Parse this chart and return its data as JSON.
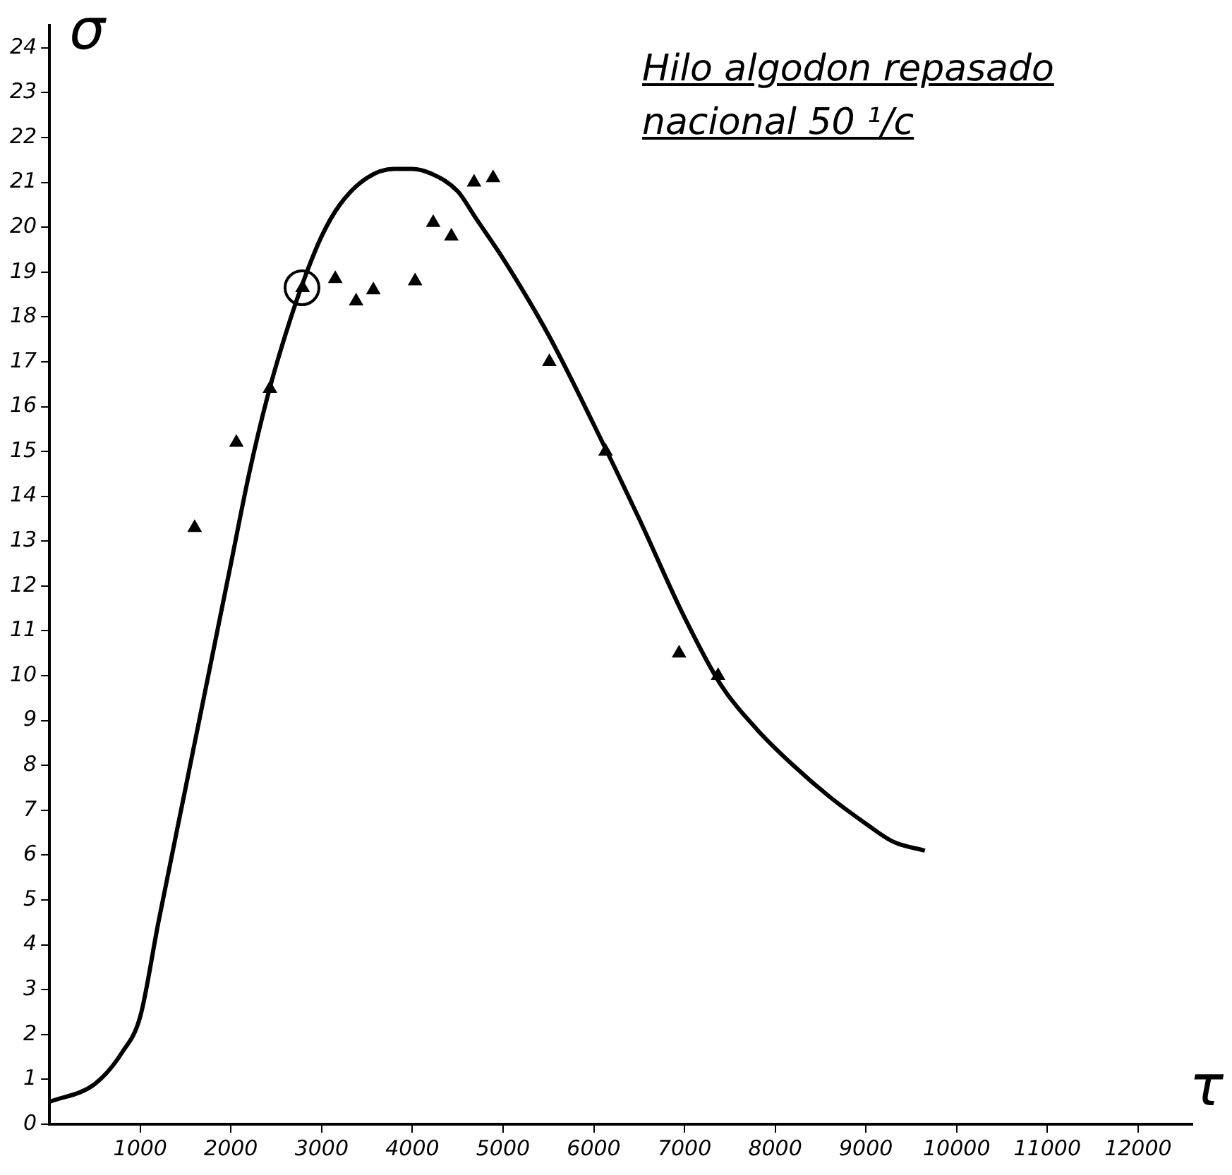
{
  "chart_data": {
    "type": "scatter",
    "title": "Hilo algodon repasado nacional 50 ¹/c",
    "xlabel": "τ",
    "ylabel": "σ",
    "xlim": [
      0,
      12600
    ],
    "xticks": [
      1000,
      2000,
      3000,
      4000,
      5000,
      6000,
      7000,
      8000,
      9000,
      10000,
      11000,
      12000
    ],
    "ylim": [
      0,
      24.5
    ],
    "yticks": [
      0,
      1,
      2,
      3,
      4,
      5,
      6,
      7,
      8,
      9,
      10,
      11,
      12,
      13,
      14,
      15,
      16,
      17,
      18,
      19,
      20,
      21,
      22,
      23,
      24
    ],
    "grid": false,
    "legend": false,
    "marker": "triangle",
    "series": [
      {
        "type": "scatter",
        "color": "#000000",
        "x": [
          1600,
          2060,
          2430,
          2790,
          3150,
          3380,
          3570,
          4030,
          4230,
          4430,
          4680,
          4890,
          5510,
          6130,
          6940,
          7370
        ],
        "values": [
          13.3,
          15.2,
          16.4,
          18.65,
          18.85,
          18.35,
          18.6,
          18.8,
          20.1,
          19.8,
          21.0,
          21.1,
          17.0,
          15.0,
          10.5,
          10.0
        ]
      },
      {
        "type": "line",
        "color": "#000000",
        "marker": "none",
        "x": [
          0,
          500,
          800,
          1000,
          1200,
          1500,
          1800,
          2000,
          2200,
          2400,
          2600,
          2800,
          3000,
          3200,
          3500,
          3800,
          4000,
          4200,
          4500,
          4700,
          5000,
          5500,
          6000,
          6500,
          7000,
          7400,
          7800,
          8200,
          8600,
          9000,
          9300,
          9650
        ],
        "values": [
          0.5,
          0.9,
          1.6,
          2.4,
          4.5,
          7.5,
          10.5,
          12.5,
          14.5,
          16.2,
          17.6,
          18.8,
          19.8,
          20.5,
          21.1,
          21.3,
          21.3,
          21.2,
          20.8,
          20.2,
          19.3,
          17.6,
          15.6,
          13.5,
          11.3,
          9.8,
          8.8,
          8.0,
          7.3,
          6.7,
          6.3,
          6.1
        ]
      }
    ]
  }
}
